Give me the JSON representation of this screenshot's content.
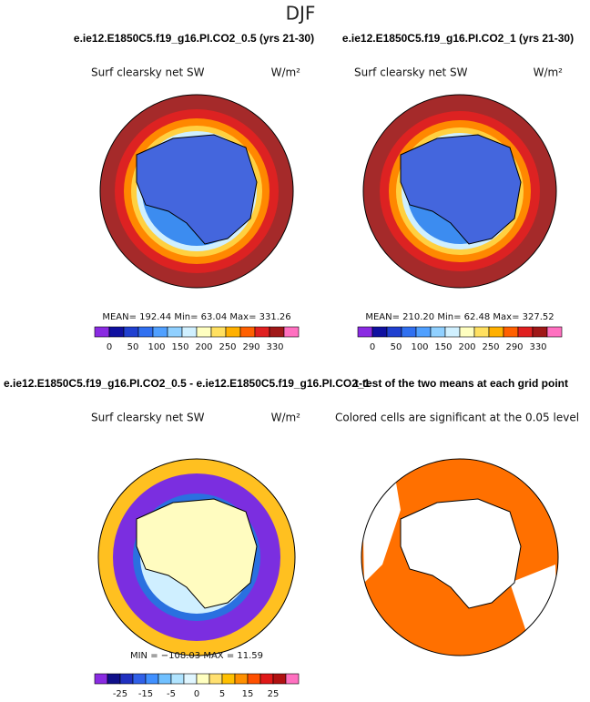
{
  "title": "DJF",
  "panels": [
    {
      "header": "e.ie12.E1850C5.f19_g16.PI.CO2_0.5 (yrs 21-30)",
      "variable": "Surf clearsky net SW",
      "units": "W/m²",
      "stats": "MEAN= 192.44   Min=  63.04   Max= 331.26",
      "colorbar_labels": [
        "0",
        "50",
        "100",
        "150",
        "200",
        "250",
        "290",
        "330"
      ]
    },
    {
      "header": "e.ie12.E1850C5.f19_g16.PI.CO2_1 (yrs 21-30)",
      "variable": "Surf clearsky net SW",
      "units": "W/m²",
      "stats": "MEAN= 210.20   Min=  62.48   Max= 327.52",
      "colorbar_labels": [
        "0",
        "50",
        "100",
        "150",
        "200",
        "250",
        "290",
        "330"
      ]
    },
    {
      "header": "e.ie12.E1850C5.f19_g16.PI.CO2_0.5 - e.ie12.E1850C5.f19_g16.PI.CO2_1",
      "variable": "Surf clearsky net SW",
      "units": "W/m²",
      "stats": "MIN = −108.03  MAX =  11.59",
      "colorbar_labels": [
        "-25",
        "-15",
        "-5",
        "0",
        "5",
        "15",
        "25"
      ]
    },
    {
      "header": "t-test of the two means at each grid point",
      "subtitle": "Colored cells are significant at the 0.05 level"
    }
  ]
}
